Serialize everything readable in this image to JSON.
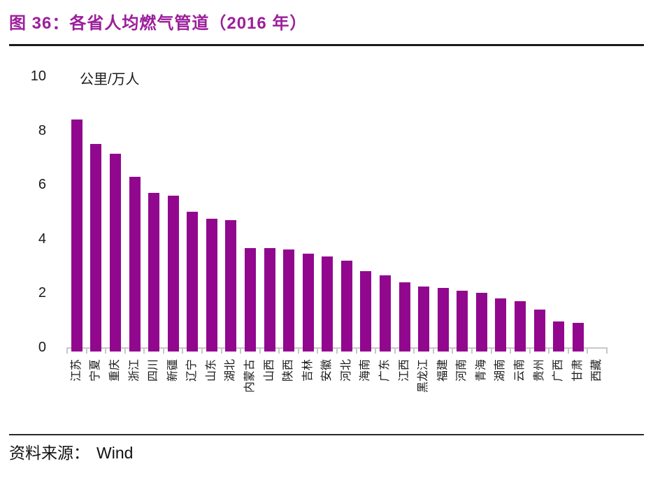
{
  "figure": {
    "title": "图 36：各省人均燃气管道（2016 年）",
    "source_label": "资料来源：",
    "source_value": "Wind"
  },
  "colors": {
    "title_purple": "#9c1f9c",
    "bar_purple": "#91088e",
    "axis_gray": "#c8c8c8",
    "text_black": "#1a1a1a"
  },
  "chart_data": {
    "type": "bar",
    "title": "各省人均燃气管道（2016 年）",
    "unit_label": "公里/万人",
    "xlabel": "",
    "ylabel": "公里/万人",
    "ylim": [
      0,
      10
    ],
    "yticks": [
      0,
      2,
      4,
      6,
      8,
      10
    ],
    "grid": false,
    "legend_position": "none",
    "bar_color": "#91088e",
    "categories": [
      "江苏",
      "宁夏",
      "重庆",
      "浙江",
      "四川",
      "新疆",
      "辽宁",
      "山东",
      "湖北",
      "内蒙古",
      "山西",
      "陕西",
      "吉林",
      "安徽",
      "河北",
      "海南",
      "广东",
      "江西",
      "黑龙江",
      "福建",
      "河南",
      "青海",
      "湖南",
      "云南",
      "贵州",
      "广西",
      "甘肃",
      "西藏"
    ],
    "values": [
      8.4,
      7.5,
      7.15,
      6.3,
      5.7,
      5.6,
      5.0,
      4.75,
      4.7,
      3.65,
      3.65,
      3.6,
      3.45,
      3.35,
      3.2,
      2.8,
      2.65,
      2.4,
      2.25,
      2.2,
      2.1,
      2.0,
      1.8,
      1.7,
      1.4,
      0.95,
      0.9,
      0
    ]
  }
}
